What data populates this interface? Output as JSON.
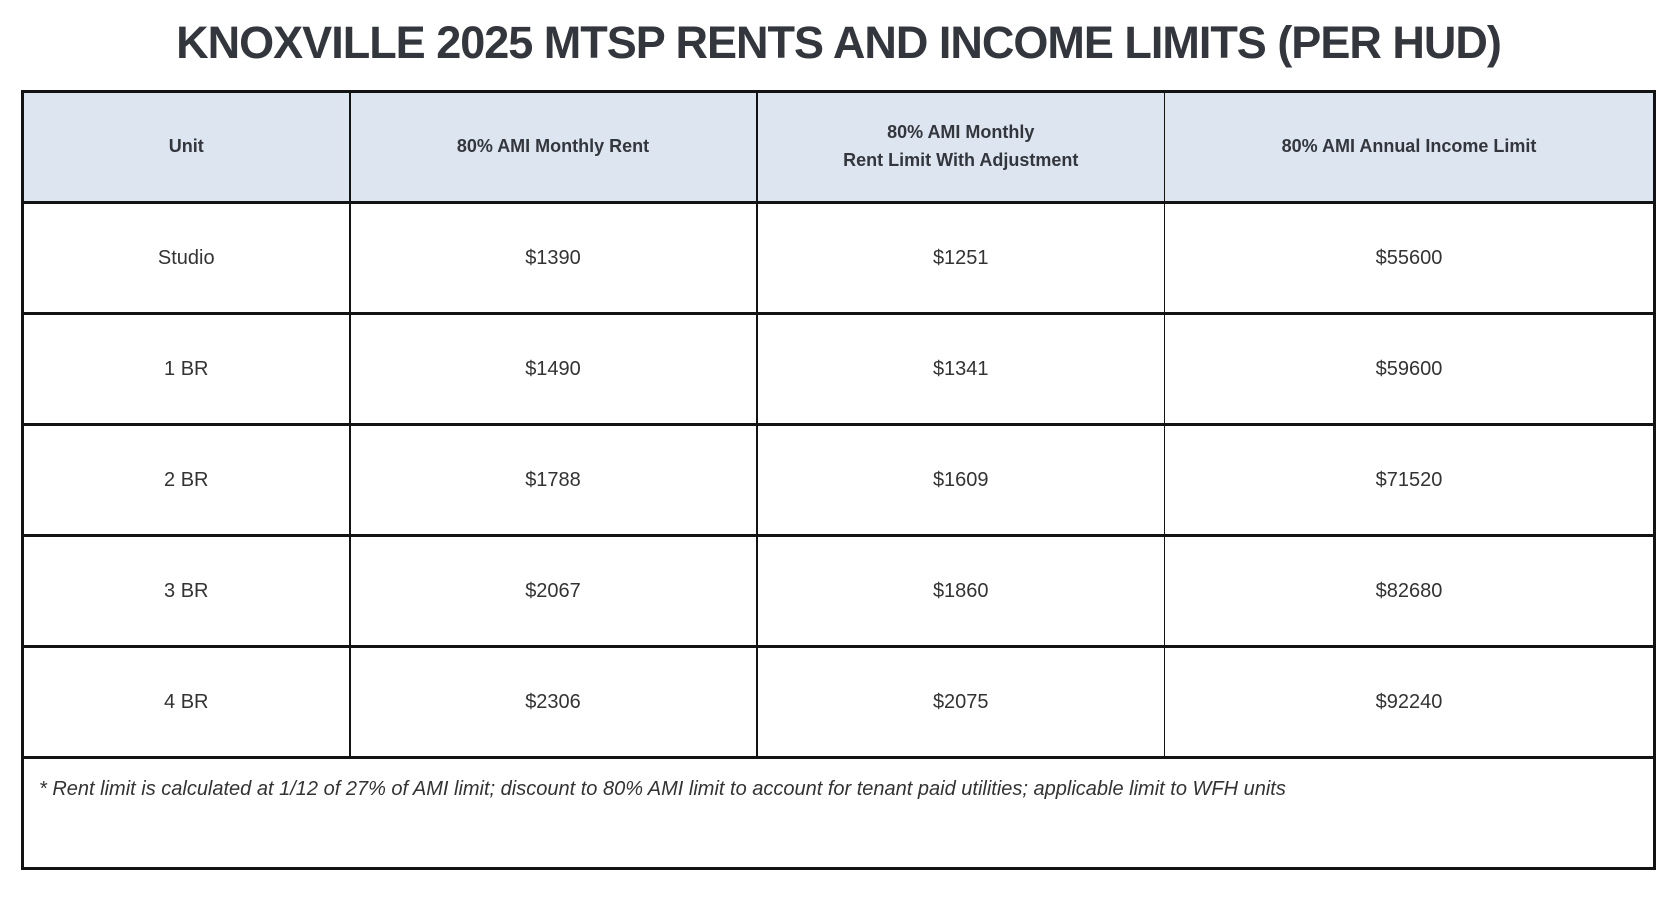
{
  "title": "KNOXVILLE 2025 MTSP RENTS AND INCOME LIMITS (PER HUD)",
  "table": {
    "headers": {
      "unit": "Unit",
      "monthly_rent": "80% AMI Monthly Rent",
      "rent_limit_adjusted": "80% AMI Monthly\nRent Limit With Adjustment",
      "annual_income": "80% AMI Annual Income Limit"
    },
    "rows": [
      {
        "unit": "Studio",
        "monthly_rent": "$1390",
        "rent_limit_adjusted": "$1251",
        "annual_income": "$55600"
      },
      {
        "unit": "1 BR",
        "monthly_rent": "$1490",
        "rent_limit_adjusted": "$1341",
        "annual_income": "$59600"
      },
      {
        "unit": "2 BR",
        "monthly_rent": "$1788",
        "rent_limit_adjusted": "$1609",
        "annual_income": "$71520"
      },
      {
        "unit": "3 BR",
        "monthly_rent": "$2067",
        "rent_limit_adjusted": "$1860",
        "annual_income": "$82680"
      },
      {
        "unit": "4 BR",
        "monthly_rent": "$2306",
        "rent_limit_adjusted": "$2075",
        "annual_income": "$92240"
      }
    ],
    "footnote": "* Rent limit is calculated at 1/12 of 27% of AMI limit; discount to 80% AMI limit to account for tenant paid utilities; applicable limit to WFH units"
  },
  "chart_data": {
    "type": "table",
    "title": "KNOXVILLE 2025 MTSP RENTS AND INCOME LIMITS (PER HUD)",
    "columns": [
      "Unit",
      "80% AMI Monthly Rent",
      "80% AMI Monthly Rent Limit With Adjustment",
      "80% AMI Annual Income Limit"
    ],
    "rows": [
      [
        "Studio",
        1390,
        1251,
        55600
      ],
      [
        "1 BR",
        1490,
        1341,
        59600
      ],
      [
        "2 BR",
        1788,
        1609,
        71520
      ],
      [
        "3 BR",
        2067,
        1860,
        82680
      ],
      [
        "4 BR",
        2306,
        2075,
        92240
      ]
    ]
  },
  "colors": {
    "header_bg": "#dce5f0",
    "border": "#131313",
    "title_text": "#33373d",
    "body_text": "#333333"
  }
}
